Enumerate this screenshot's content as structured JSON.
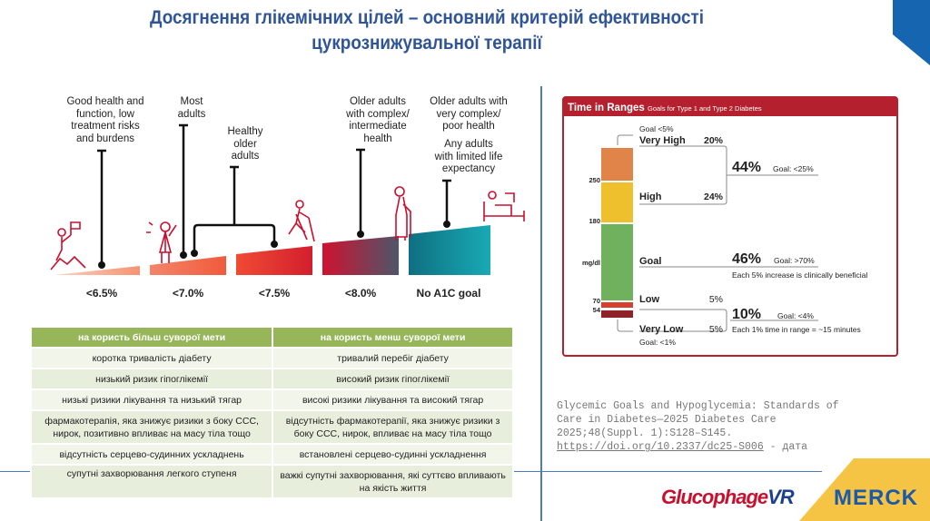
{
  "title": {
    "line1": "Досягнення глікемічних цілей – основний критерій ефективності",
    "line2": "цукрознижувальної терапії"
  },
  "infographic": {
    "groups": [
      {
        "text": "Good health and\nfunction, low\ntreatment risks\nand burdens"
      },
      {
        "text": "Most\nadults"
      },
      {
        "text": "Healthy\nolder\nadults"
      },
      {
        "text": "Older adults\nwith complex/\nintermediate\nhealth"
      },
      {
        "text": "Older adults with\nvery complex/\npoor health"
      },
      {
        "text": "Any adults\nwith limited life\nexpectancy"
      }
    ],
    "goals": [
      "<6.5%",
      "<7.0%",
      "<7.5%",
      "<8.0%",
      "No A1C goal"
    ]
  },
  "table": {
    "headers": [
      "на користь більш суворої мети",
      "на користь менш суворої мети"
    ],
    "rows": [
      [
        "коротка тривалість діабету",
        "тривалий перебіг діабету"
      ],
      [
        "низький ризик гіпоглікемії",
        "високий ризик гіпоглікемії"
      ],
      [
        "низькі ризики лікування та низький тягар",
        "високі ризики лікування та високий тягар"
      ],
      [
        "фармакотерапія, яка знижує ризики з боку ССС, нирок, позитивно впливає на масу тіла тощо",
        "відсутність фармакотерапії, яка знижує ризики з боку ССС, нирок, впливає на масу тіла тощо"
      ],
      [
        "відсутність серцево-судинних ускладнень",
        "встановлені серцево-судинні ускладнення"
      ],
      [
        "супутні захворювання легкого ступеня",
        "важкі супутні захворювання, які суттєво впливають на якість життя"
      ]
    ]
  },
  "tir": {
    "title": "Time in Ranges",
    "subtitle": "Goals for Type 1 and Type 2 Diabetes",
    "goal_vh": "Goal <5%",
    "very_high": "Very High",
    "very_high_pct": "20%",
    "high": "High",
    "high_pct": "24%",
    "high_total": "44%",
    "high_goal": "Goal: <25%",
    "goal": "Goal",
    "goal_pct": "46%",
    "goal_goal": "Goal: >70%",
    "goal_note": "Each 5% increase is clinically beneficial",
    "low": "Low",
    "low_pct": "5%",
    "low_total": "10%",
    "low_goal": "Goal: <4%",
    "very_low": "Very Low",
    "very_low_pct": "5%",
    "low_note": "Each 1% time in range = ~15 minutes",
    "goal_vl": "Goal: <1%",
    "ticks": [
      "250",
      "180",
      "mg/dl",
      "70",
      "54"
    ],
    "colors": {
      "very_high": "#e0844a",
      "high": "#eec02e",
      "goal": "#6fb15c",
      "low": "#d6402f",
      "very_low": "#8e2228",
      "header": "#b5202e"
    }
  },
  "citation": {
    "l1": "Glycemic Goals and Hypoglycemia: Standards of",
    "l2": "Care in Diabetes—2025 Diabetes Care",
    "l3": "2025;48(Suppl. 1):S128–S145.",
    "l4": "https://doi.org/10.2337/dc25-S006",
    "l4b": " - дата"
  },
  "logos": {
    "glucophage": "Glucophage",
    "vr": "VR",
    "merck": "MERCK"
  }
}
